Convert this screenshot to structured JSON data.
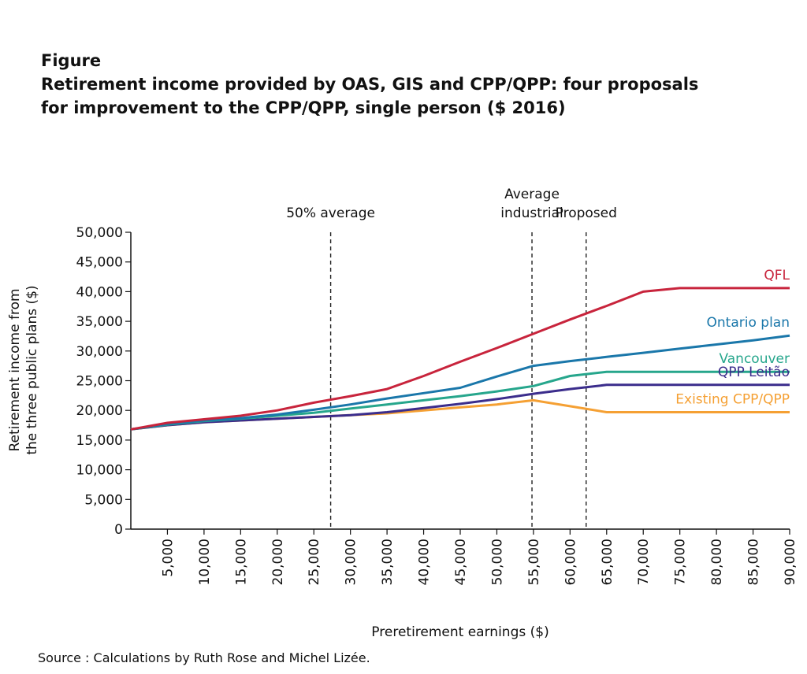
{
  "figure": {
    "label": "Figure",
    "title_lines": [
      "Retirement income provided by OAS, GIS and CPP/QPP: four proposals",
      "for improvement to the CPP/QPP, single person ($ 2016)"
    ],
    "source": "Source : Calculations by Ruth Rose and Michel Lizée."
  },
  "chart_data": {
    "type": "line",
    "title": "Retirement income provided by OAS, GIS and CPP/QPP: four proposals for improvement to the CPP/QPP, single person ($ 2016)",
    "xlabel": "Preretirement earnings ($)",
    "ylabel_lines": [
      "Retirement income from",
      "the three public plans ($)"
    ],
    "xlim": [
      0,
      90000
    ],
    "ylim": [
      0,
      50000
    ],
    "x_ticks": [
      5000,
      10000,
      15000,
      20000,
      25000,
      30000,
      35000,
      40000,
      45000,
      50000,
      55000,
      60000,
      65000,
      70000,
      75000,
      80000,
      85000,
      90000
    ],
    "x_tick_labels": [
      "5,000",
      "10,000",
      "15,000",
      "20,000",
      "25,000",
      "30,000",
      "35,000",
      "40,000",
      "45,000",
      "50,000",
      "55,000",
      "60,000",
      "65,000",
      "70,000",
      "75,000",
      "80,000",
      "85,000",
      "90,000"
    ],
    "y_ticks": [
      0,
      5000,
      10000,
      15000,
      20000,
      25000,
      30000,
      35000,
      40000,
      45000,
      50000
    ],
    "y_tick_labels": [
      "0",
      "5,000",
      "10,000",
      "15,000",
      "20,000",
      "25,000",
      "30,000",
      "35,000",
      "40,000",
      "45,000",
      "50,000"
    ],
    "reference_lines": [
      {
        "x": 27300,
        "label_lines": [
          "50% average"
        ]
      },
      {
        "x": 54800,
        "label_lines": [
          "Average",
          "industrial"
        ]
      },
      {
        "x": 62200,
        "label_lines": [
          "Proposed"
        ]
      }
    ],
    "series": [
      {
        "name": "QFL",
        "color": "#c8243c",
        "x": [
          0,
          5000,
          10000,
          15000,
          20000,
          25000,
          30000,
          35000,
          40000,
          45000,
          50000,
          55000,
          60000,
          65000,
          70000,
          75000,
          80000,
          85000,
          90000
        ],
        "y": [
          16800,
          17900,
          18500,
          19100,
          20000,
          21300,
          22400,
          23600,
          25800,
          28200,
          30500,
          32900,
          35300,
          37600,
          40000,
          40600,
          40600,
          40600,
          40600
        ]
      },
      {
        "name": "Ontario plan",
        "color": "#1a77aa",
        "x": [
          0,
          5000,
          10000,
          15000,
          20000,
          25000,
          30000,
          35000,
          40000,
          45000,
          50000,
          55000,
          60000,
          65000,
          70000,
          75000,
          80000,
          85000,
          90000
        ],
        "y": [
          16800,
          17700,
          18300,
          18700,
          19300,
          20100,
          21000,
          22000,
          22900,
          23800,
          25700,
          27500,
          28300,
          29000,
          29700,
          30400,
          31100,
          31800,
          32600
        ]
      },
      {
        "name": "Vancouver",
        "color": "#26a68c",
        "x": [
          0,
          5000,
          10000,
          15000,
          20000,
          25000,
          30000,
          35000,
          40000,
          45000,
          50000,
          55000,
          60000,
          65000,
          70000,
          75000,
          80000,
          85000,
          90000
        ],
        "y": [
          16800,
          17600,
          18200,
          18600,
          19100,
          19600,
          20300,
          21000,
          21700,
          22400,
          23200,
          24100,
          25800,
          26500,
          26500,
          26500,
          26500,
          26500,
          26500
        ]
      },
      {
        "name": "QPP Leitão",
        "color": "#3b2d8c",
        "x": [
          0,
          5000,
          10000,
          15000,
          20000,
          25000,
          30000,
          35000,
          40000,
          45000,
          50000,
          55000,
          60000,
          65000,
          70000,
          75000,
          80000,
          85000,
          90000
        ],
        "y": [
          16800,
          17500,
          18000,
          18300,
          18600,
          18900,
          19200,
          19700,
          20400,
          21100,
          21900,
          22800,
          23600,
          24300,
          24300,
          24300,
          24300,
          24300,
          24300
        ]
      },
      {
        "name": "Existing CPP/QPP",
        "color": "#f5a033",
        "x": [
          0,
          5000,
          10000,
          15000,
          20000,
          25000,
          30000,
          35000,
          40000,
          45000,
          50000,
          55000,
          60000,
          65000,
          70000,
          75000,
          80000,
          85000,
          90000
        ],
        "y": [
          16800,
          17500,
          18000,
          18300,
          18600,
          18900,
          19200,
          19500,
          20000,
          20500,
          21000,
          21700,
          20700,
          19700,
          19700,
          19700,
          19700,
          19700,
          19700
        ]
      }
    ],
    "series_label_placement": "right end of each line, above it"
  }
}
